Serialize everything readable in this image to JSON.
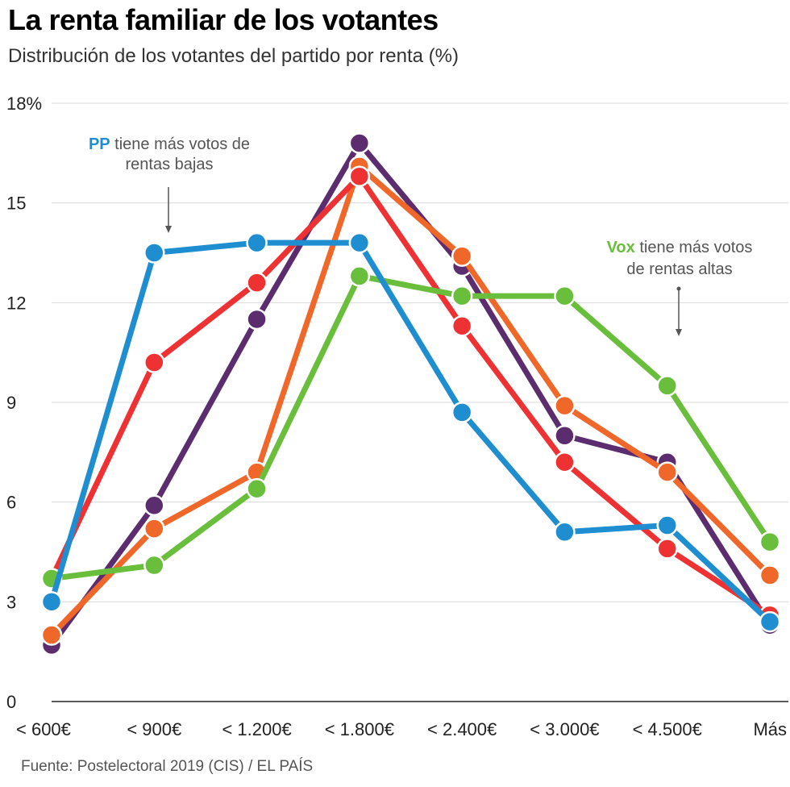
{
  "chart_data": {
    "type": "line",
    "title": "La renta familiar de los votantes",
    "subtitle": "Distribución de los votantes del partido por renta (%)",
    "categories": [
      "< 600€",
      "< 900€",
      "< 1.200€",
      "< 1.800€",
      "< 2.400€",
      "< 3.000€",
      "< 4.500€",
      "Más"
    ],
    "y_ticks": [
      "0",
      "3",
      "6",
      "9",
      "12",
      "15",
      "18%"
    ],
    "ylim": [
      0,
      18
    ],
    "grid": true,
    "series": [
      {
        "color": "#5c2d6e",
        "values": [
          1.7,
          5.9,
          11.5,
          16.8,
          13.1,
          8.0,
          7.2,
          2.3
        ]
      },
      {
        "color": "#f0672a",
        "values": [
          2.0,
          5.2,
          6.9,
          16.1,
          13.4,
          8.9,
          6.9,
          3.8
        ]
      },
      {
        "color": "#ee3233",
        "values": [
          3.7,
          10.2,
          12.6,
          15.8,
          11.3,
          7.2,
          4.6,
          2.6
        ]
      },
      {
        "color": "#69be3b",
        "values": [
          3.7,
          4.1,
          6.4,
          12.8,
          12.2,
          12.2,
          9.5,
          4.8
        ]
      },
      {
        "color": "#1f8ed0",
        "values": [
          3.0,
          13.5,
          13.8,
          13.8,
          8.7,
          5.1,
          5.3,
          2.4
        ]
      }
    ],
    "annotations": [
      {
        "highlight": "PP",
        "highlight_color": "#1f8ed0",
        "text_line1": " tiene más votos de",
        "text_line2": "rentas bajas"
      },
      {
        "highlight": "Vox",
        "highlight_color": "#69be3b",
        "text_line1": " tiene más votos",
        "text_line2": "de rentas altas"
      }
    ]
  },
  "source": "Fuente: Postelectoral 2019 (CIS) / EL PAÍS"
}
